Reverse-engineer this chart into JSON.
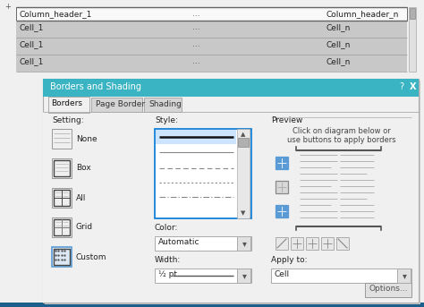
{
  "bg_color": "#f0f0f0",
  "table_white_bg": "#f9f9f9",
  "table_cell_bg": "#c8c8c8",
  "table_border_color": "#666666",
  "table_header_text": [
    "Column_header_1",
    "...",
    "Column_header_n"
  ],
  "table_cell_text": [
    "Cell_1",
    "...",
    "Cell_n"
  ],
  "dialog_title": "Borders and Shading",
  "dialog_title_bg": "#3ab4c3",
  "dialog_title_text_color": "#ffffff",
  "dialog_bg": "#f0f0f0",
  "dialog_inner_bg": "#e8e8e8",
  "dialog_border_color": "#aaaaaa",
  "tab_active": "Borders",
  "tab_inactive": [
    "Page Border",
    "Shading"
  ],
  "section_setting": "Setting:",
  "section_style": "Style:",
  "section_color": "Color:",
  "section_width": "Width:",
  "section_preview": "Preview",
  "section_applyto": "Apply to:",
  "setting_items": [
    "None",
    "Box",
    "All",
    "Grid",
    "Custom"
  ],
  "color_dropdown": "Automatic",
  "width_dropdown": "½ pt",
  "applyto_dropdown": "Cell",
  "preview_text1": "Click on diagram below or",
  "preview_text2": "use buttons to apply borders",
  "options_btn": "Options...",
  "accent_blue": "#3ab4c3",
  "btn_selected_color": "#5b9bd5",
  "scrollbar_bg": "#d0d0d0",
  "bottom_bar_color": "#1c5f8a"
}
